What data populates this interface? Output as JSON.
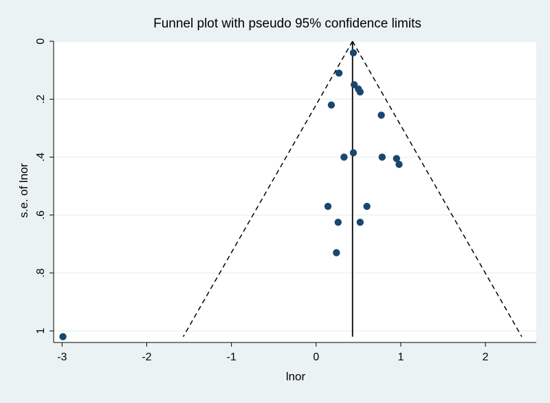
{
  "chart_data": {
    "type": "scatter",
    "title": "Funnel plot with pseudo 95% confidence limits",
    "xlabel": "lnor",
    "ylabel": "s.e. of lnor",
    "xlim": [
      -3.1,
      2.6
    ],
    "ylim": [
      0,
      1.04
    ],
    "y_reversed": true,
    "grid": true,
    "x_ticks": [
      -3,
      -2,
      -1,
      0,
      1,
      2
    ],
    "x_tick_labels": [
      "-3",
      "-2",
      "-1",
      "0",
      "1",
      "2"
    ],
    "y_ticks": [
      0,
      0.2,
      0.4,
      0.6,
      0.8,
      1
    ],
    "y_tick_labels": [
      "0",
      ".2",
      ".4",
      ".6",
      ".8",
      "1"
    ],
    "pooled_effect": 0.43,
    "se_max": 1.02,
    "ci_multiplier": 1.96,
    "points": [
      {
        "x": 0.44,
        "y": 0.04
      },
      {
        "x": 0.27,
        "y": 0.11
      },
      {
        "x": 0.45,
        "y": 0.15
      },
      {
        "x": 0.5,
        "y": 0.165
      },
      {
        "x": 0.52,
        "y": 0.175
      },
      {
        "x": 0.18,
        "y": 0.22
      },
      {
        "x": 0.77,
        "y": 0.255
      },
      {
        "x": 0.44,
        "y": 0.385
      },
      {
        "x": 0.33,
        "y": 0.4
      },
      {
        "x": 0.78,
        "y": 0.4
      },
      {
        "x": 0.95,
        "y": 0.405
      },
      {
        "x": 0.98,
        "y": 0.425
      },
      {
        "x": 0.14,
        "y": 0.57
      },
      {
        "x": 0.6,
        "y": 0.57
      },
      {
        "x": 0.26,
        "y": 0.625
      },
      {
        "x": 0.52,
        "y": 0.625
      },
      {
        "x": 0.24,
        "y": 0.73
      },
      {
        "x": -2.99,
        "y": 1.02
      }
    ],
    "colors": {
      "background": "#eaf2f3",
      "plot_area": "#ffffff",
      "grid": "#eaf2f3",
      "marker": "#1a476f"
    }
  }
}
